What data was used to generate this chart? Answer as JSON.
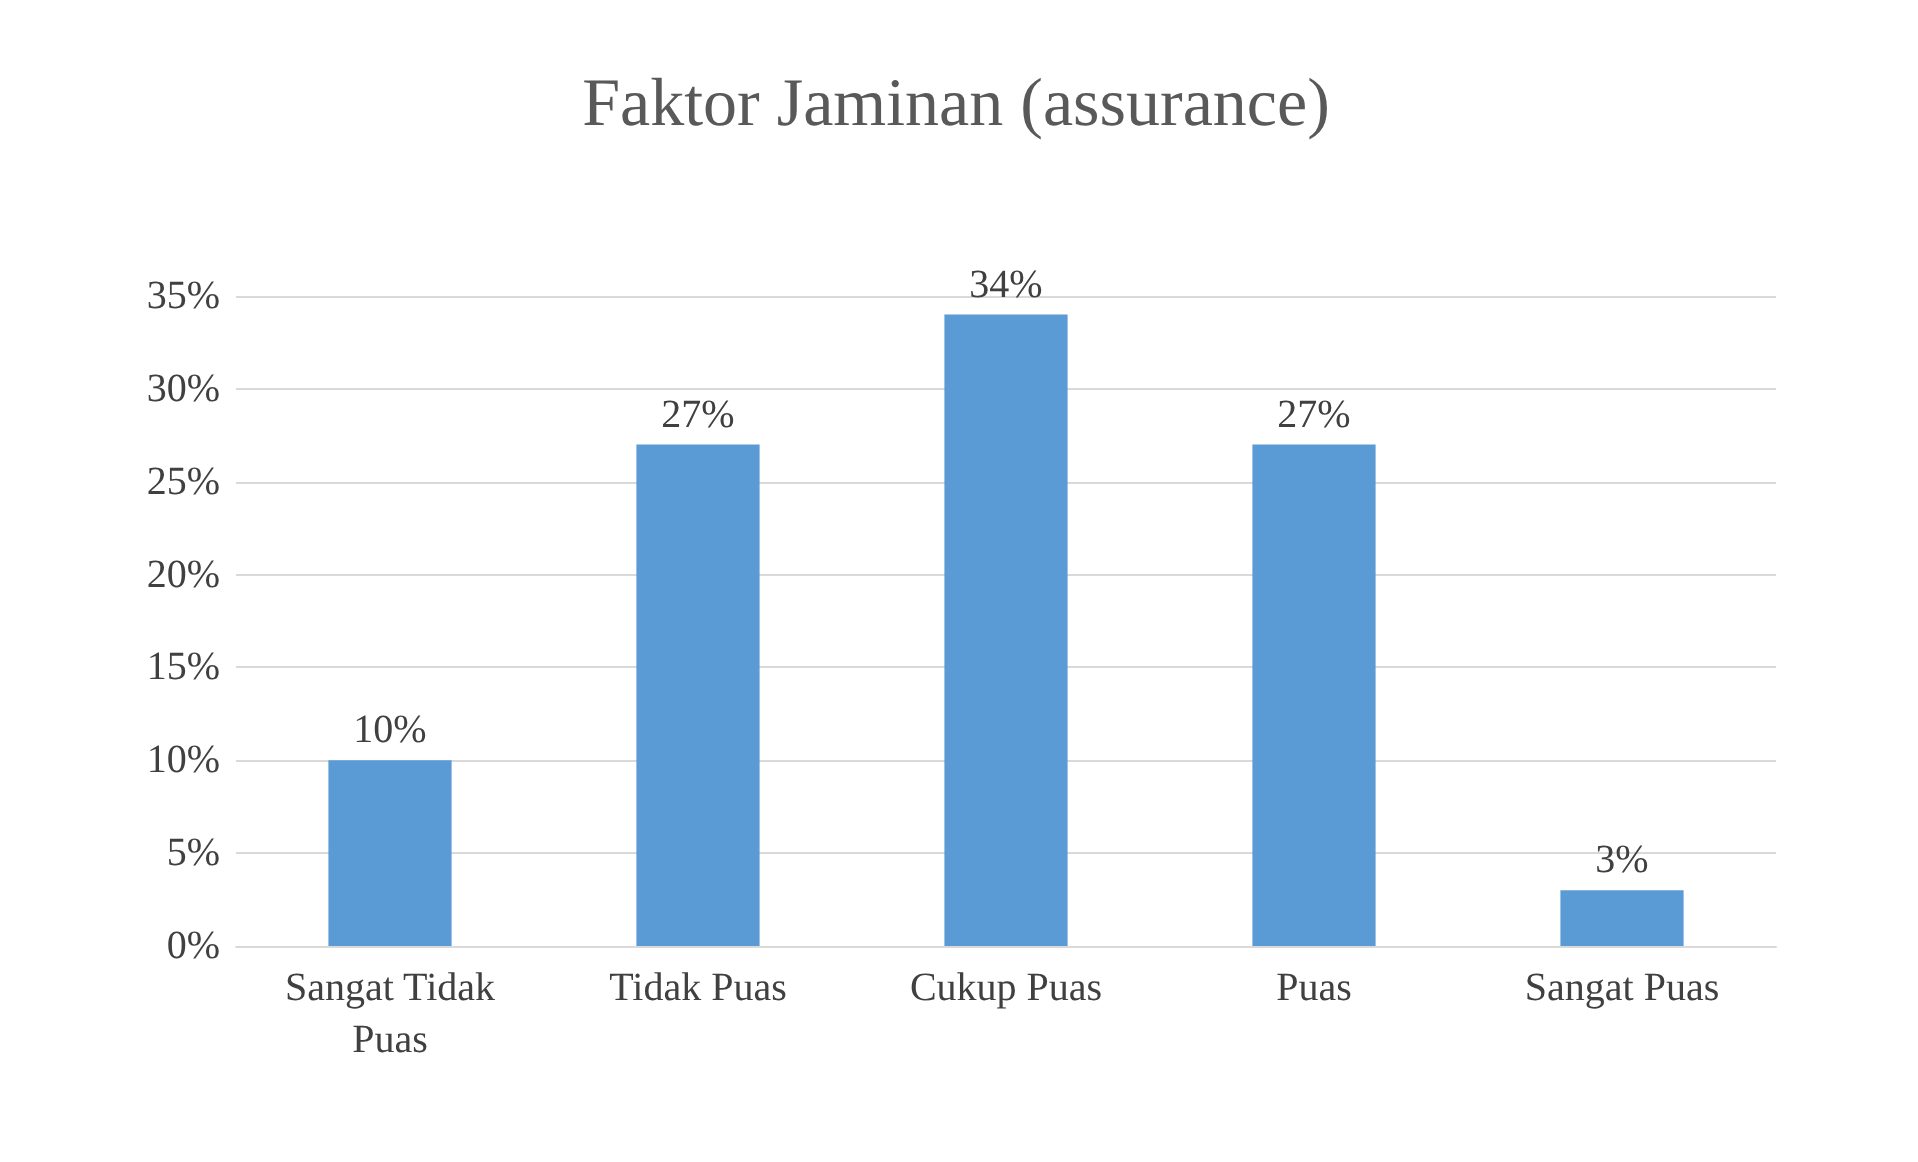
{
  "chart_data": {
    "type": "bar",
    "title": "Faktor Jaminan (assurance)",
    "categories": [
      "Sangat Tidak\nPuas",
      "Tidak Puas",
      "Cukup Puas",
      "Puas",
      "Sangat Puas"
    ],
    "values": [
      10,
      27,
      34,
      27,
      3
    ],
    "value_labels": [
      "10%",
      "27%",
      "34%",
      "27%",
      "3%"
    ],
    "color": "#5b9bd5",
    "ylim": [
      0,
      35
    ],
    "yticks": [
      {
        "value": 0,
        "label": "0%"
      },
      {
        "value": 5,
        "label": "5%"
      },
      {
        "value": 10,
        "label": "10%"
      },
      {
        "value": 15,
        "label": "15%"
      },
      {
        "value": 20,
        "label": "20%"
      },
      {
        "value": 25,
        "label": "25%"
      },
      {
        "value": 30,
        "label": "30%"
      },
      {
        "value": 35,
        "label": "35%"
      }
    ],
    "grid": "y"
  }
}
